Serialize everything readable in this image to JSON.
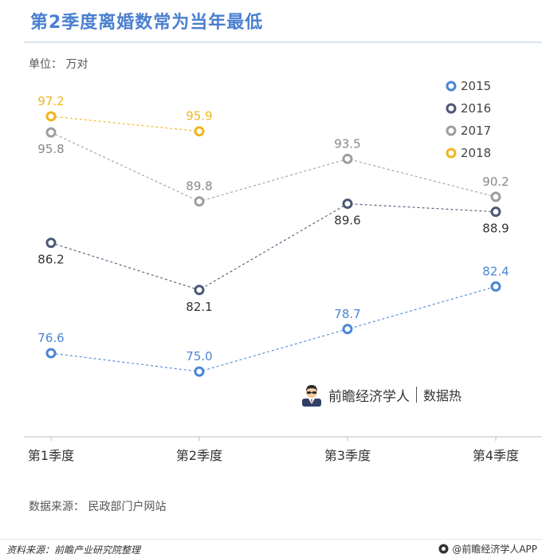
{
  "title": "第2季度离婚数常为当年最低",
  "unit_label": "单位： 万对",
  "source_label": "数据来源： 民政部门户网站",
  "footer": {
    "left": "资料来源：前瞻产业研究院整理",
    "right": "@前瞻经济学人APP"
  },
  "brand": {
    "name": "前瞻经济学人",
    "sub": "数据热",
    "avatar_icon": "person-avatar-icon"
  },
  "chart_data": {
    "type": "line",
    "categories": [
      "第1季度",
      "第2季度",
      "第3季度",
      "第4季度"
    ],
    "ylim": [
      73,
      99
    ],
    "grid": false,
    "legend_position": "top-right",
    "series": [
      {
        "name": "2015",
        "color": "#4a86d6",
        "values": [
          76.6,
          75.0,
          78.7,
          82.4
        ]
      },
      {
        "name": "2016",
        "color": "#4b5873",
        "values": [
          86.2,
          82.1,
          89.6,
          88.9
        ]
      },
      {
        "name": "2017",
        "color": "#9d9d9d",
        "values": [
          95.8,
          89.8,
          93.5,
          90.2
        ]
      },
      {
        "name": "2018",
        "color": "#f2b51c",
        "values": [
          97.2,
          95.9,
          null,
          null
        ]
      }
    ]
  }
}
